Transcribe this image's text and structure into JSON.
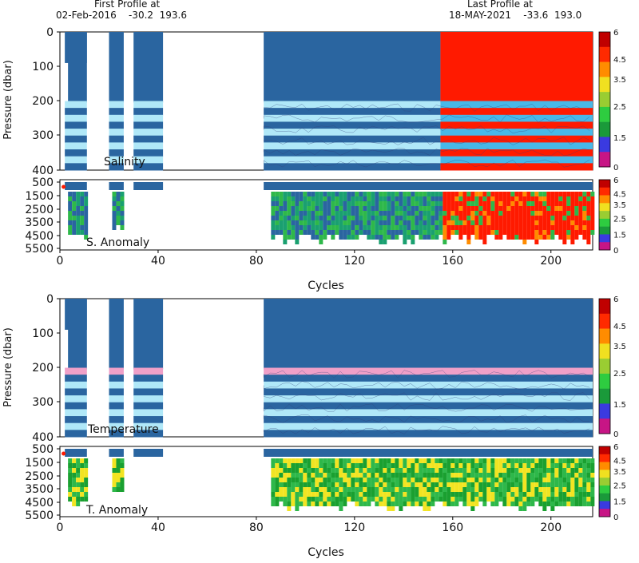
{
  "header": {
    "first_title": "First Profile at",
    "first_info": "02-Feb-2016    -30.2  193.6",
    "last_title": "Last Profile at",
    "last_info": "18-MAY-2021    -33.6  193.0"
  },
  "colorbar": {
    "ticks": [
      "6",
      "4.5",
      "3.5",
      "2.5",
      "1.5",
      "0"
    ],
    "colors": [
      "#c71585",
      "#3a3ae0",
      "#1a9a3a",
      "#2ecc40",
      "#9acd32",
      "#f0e020",
      "#ff8c00",
      "#ff2a00",
      "#c00000"
    ]
  },
  "colors": {
    "deep_blue": "#2a65a0",
    "light_cyan": "#b0e8f8",
    "mid_cyan": "#48b8e8",
    "red": "#ff1a00",
    "green": "#2eb84a",
    "yellow": "#f2e422",
    "pink": "#f0a0c8"
  },
  "chart_data": [
    {
      "type": "heatmap",
      "title": "Salinity",
      "ylabel": "Pressure (dbar)",
      "xlim": [
        0,
        217
      ],
      "ylim": [
        400,
        0
      ],
      "yticks": [
        "0",
        "100",
        "200",
        "300",
        "400"
      ],
      "data_segments": [
        [
          2,
          11
        ],
        [
          20,
          26
        ],
        [
          30,
          42
        ],
        [
          83,
          217
        ]
      ]
    },
    {
      "type": "heatmap",
      "title": "S. Anomaly",
      "xlabel": "Cycles",
      "xlim": [
        0,
        217
      ],
      "ylim": [
        5500,
        500
      ],
      "yticks": [
        "500",
        "1500",
        "2500",
        "3500",
        "4500",
        "5500"
      ],
      "xticks": [
        "0",
        "40",
        "80",
        "120",
        "160",
        "200"
      ]
    },
    {
      "type": "heatmap",
      "title": "Temperature",
      "ylabel": "Pressure (dbar)",
      "xlim": [
        0,
        217
      ],
      "ylim": [
        400,
        0
      ],
      "yticks": [
        "0",
        "100",
        "200",
        "300",
        "400"
      ]
    },
    {
      "type": "heatmap",
      "title": "T. Anomaly",
      "xlabel": "Cycles",
      "xlim": [
        0,
        217
      ],
      "ylim": [
        5500,
        500
      ],
      "yticks": [
        "500",
        "1500",
        "2500",
        "3500",
        "4500",
        "5500"
      ],
      "xticks": [
        "0",
        "40",
        "80",
        "120",
        "160",
        "200"
      ]
    }
  ]
}
